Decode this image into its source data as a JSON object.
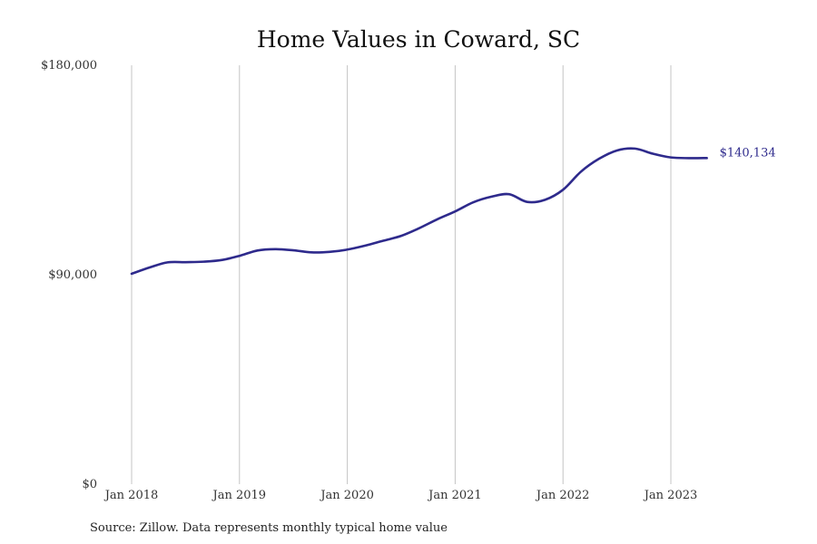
{
  "chart_data": {
    "type": "line",
    "title": "Home Values in Coward, SC",
    "source": "Source: Zillow. Data represents monthly typical home value",
    "ylim": [
      0,
      180000
    ],
    "y_ticks": [
      {
        "value": 0,
        "label": "$0"
      },
      {
        "value": 90000,
        "label": "$90,000"
      },
      {
        "value": 180000,
        "label": "$180,000"
      }
    ],
    "x_ticks": [
      {
        "value": "2018-01",
        "label": "Jan 2018"
      },
      {
        "value": "2019-01",
        "label": "Jan 2019"
      },
      {
        "value": "2020-01",
        "label": "Jan 2020"
      },
      {
        "value": "2021-01",
        "label": "Jan 2021"
      },
      {
        "value": "2022-01",
        "label": "Jan 2022"
      },
      {
        "value": "2023-01",
        "label": "Jan 2023"
      }
    ],
    "xlim": [
      "2018-01",
      "2023-12"
    ],
    "grid": "vertical",
    "line_color": "#2e2a8c",
    "end_label": "$140,134",
    "series": [
      {
        "values": [
          {
            "x": "2018-01",
            "y": 90400
          },
          {
            "x": "2018-03",
            "y": 93100
          },
          {
            "x": "2018-05",
            "y": 95300
          },
          {
            "x": "2018-07",
            "y": 95400
          },
          {
            "x": "2018-09",
            "y": 95600
          },
          {
            "x": "2018-11",
            "y": 96300
          },
          {
            "x": "2019-01",
            "y": 98100
          },
          {
            "x": "2019-03",
            "y": 100400
          },
          {
            "x": "2019-05",
            "y": 101000
          },
          {
            "x": "2019-07",
            "y": 100500
          },
          {
            "x": "2019-09",
            "y": 99600
          },
          {
            "x": "2019-11",
            "y": 99800
          },
          {
            "x": "2020-01",
            "y": 100800
          },
          {
            "x": "2020-03",
            "y": 102500
          },
          {
            "x": "2020-05",
            "y": 104600
          },
          {
            "x": "2020-07",
            "y": 106700
          },
          {
            "x": "2020-09",
            "y": 110000
          },
          {
            "x": "2020-11",
            "y": 113800
          },
          {
            "x": "2021-01",
            "y": 117200
          },
          {
            "x": "2021-03",
            "y": 121100
          },
          {
            "x": "2021-05",
            "y": 123500
          },
          {
            "x": "2021-07",
            "y": 124600
          },
          {
            "x": "2021-09",
            "y": 121300
          },
          {
            "x": "2021-11",
            "y": 122200
          },
          {
            "x": "2022-01",
            "y": 126500
          },
          {
            "x": "2022-03",
            "y": 134300
          },
          {
            "x": "2022-05",
            "y": 139800
          },
          {
            "x": "2022-07",
            "y": 143400
          },
          {
            "x": "2022-09",
            "y": 144200
          },
          {
            "x": "2022-11",
            "y": 142000
          },
          {
            "x": "2023-01",
            "y": 140400
          },
          {
            "x": "2023-03",
            "y": 140100
          },
          {
            "x": "2023-05",
            "y": 140134
          }
        ]
      }
    ]
  }
}
